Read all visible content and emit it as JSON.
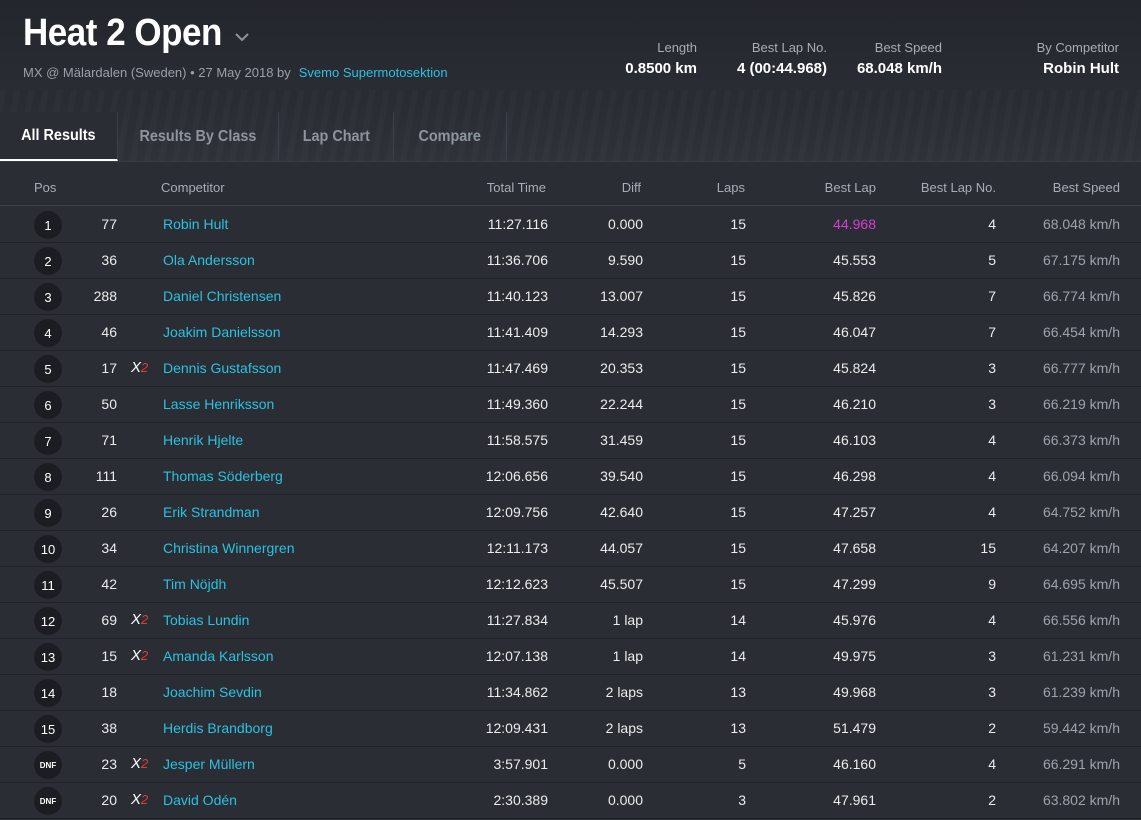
{
  "event": {
    "title": "Heat 2 Open",
    "subtitle_prefix": "MX @ Mälardalen (Sweden) • 27 May 2018 by",
    "organizer": "Svemo Supermotosektion"
  },
  "stats": [
    {
      "label": "Length",
      "value": "0.8500 km"
    },
    {
      "label": "Best Lap No.",
      "value": "4 (00:44.968)"
    },
    {
      "label": "Best Speed",
      "value": "68.048 km/h"
    },
    {
      "label": "By Competitor",
      "value": "Robin Hult"
    }
  ],
  "tabs": [
    {
      "label": "All Results",
      "active": true
    },
    {
      "label": "Results By Class",
      "active": false
    },
    {
      "label": "Lap Chart",
      "active": false
    },
    {
      "label": "Compare",
      "active": false
    }
  ],
  "columns": {
    "pos": "Pos",
    "competitor": "Competitor",
    "total_time": "Total Time",
    "diff": "Diff",
    "laps": "Laps",
    "best_lap": "Best Lap",
    "best_lap_no": "Best Lap No.",
    "best_speed": "Best Speed"
  },
  "colors": {
    "link": "#2cc1e0",
    "fastest_lap": "#d63fd0",
    "x2_mark": "#e0393e"
  },
  "rows": [
    {
      "pos": "1",
      "number": "77",
      "x2": false,
      "name": "Robin Hult",
      "total": "11:27.116",
      "diff": "0.000",
      "laps": "15",
      "best": "44.968",
      "fastest": true,
      "best_no": "4",
      "speed": "68.048 km/h"
    },
    {
      "pos": "2",
      "number": "36",
      "x2": false,
      "name": "Ola Andersson",
      "total": "11:36.706",
      "diff": "9.590",
      "laps": "15",
      "best": "45.553",
      "fastest": false,
      "best_no": "5",
      "speed": "67.175 km/h"
    },
    {
      "pos": "3",
      "number": "288",
      "x2": false,
      "name": "Daniel Christensen",
      "total": "11:40.123",
      "diff": "13.007",
      "laps": "15",
      "best": "45.826",
      "fastest": false,
      "best_no": "7",
      "speed": "66.774 km/h"
    },
    {
      "pos": "4",
      "number": "46",
      "x2": false,
      "name": "Joakim Danielsson",
      "total": "11:41.409",
      "diff": "14.293",
      "laps": "15",
      "best": "46.047",
      "fastest": false,
      "best_no": "7",
      "speed": "66.454 km/h"
    },
    {
      "pos": "5",
      "number": "17",
      "x2": true,
      "name": "Dennis Gustafsson",
      "total": "11:47.469",
      "diff": "20.353",
      "laps": "15",
      "best": "45.824",
      "fastest": false,
      "best_no": "3",
      "speed": "66.777 km/h"
    },
    {
      "pos": "6",
      "number": "50",
      "x2": false,
      "name": "Lasse Henriksson",
      "total": "11:49.360",
      "diff": "22.244",
      "laps": "15",
      "best": "46.210",
      "fastest": false,
      "best_no": "3",
      "speed": "66.219 km/h"
    },
    {
      "pos": "7",
      "number": "71",
      "x2": false,
      "name": "Henrik Hjelte",
      "total": "11:58.575",
      "diff": "31.459",
      "laps": "15",
      "best": "46.103",
      "fastest": false,
      "best_no": "4",
      "speed": "66.373 km/h"
    },
    {
      "pos": "8",
      "number": "111",
      "x2": false,
      "name": "Thomas Söderberg",
      "total": "12:06.656",
      "diff": "39.540",
      "laps": "15",
      "best": "46.298",
      "fastest": false,
      "best_no": "4",
      "speed": "66.094 km/h"
    },
    {
      "pos": "9",
      "number": "26",
      "x2": false,
      "name": "Erik Strandman",
      "total": "12:09.756",
      "diff": "42.640",
      "laps": "15",
      "best": "47.257",
      "fastest": false,
      "best_no": "4",
      "speed": "64.752 km/h"
    },
    {
      "pos": "10",
      "number": "34",
      "x2": false,
      "name": "Christina Winnergren",
      "total": "12:11.173",
      "diff": "44.057",
      "laps": "15",
      "best": "47.658",
      "fastest": false,
      "best_no": "15",
      "speed": "64.207 km/h"
    },
    {
      "pos": "11",
      "number": "42",
      "x2": false,
      "name": "Tim Nöjdh",
      "total": "12:12.623",
      "diff": "45.507",
      "laps": "15",
      "best": "47.299",
      "fastest": false,
      "best_no": "9",
      "speed": "64.695 km/h"
    },
    {
      "pos": "12",
      "number": "69",
      "x2": true,
      "name": "Tobias Lundin",
      "total": "11:27.834",
      "diff": "1 lap",
      "laps": "14",
      "best": "45.976",
      "fastest": false,
      "best_no": "4",
      "speed": "66.556 km/h"
    },
    {
      "pos": "13",
      "number": "15",
      "x2": true,
      "name": "Amanda Karlsson",
      "total": "12:07.138",
      "diff": "1 lap",
      "laps": "14",
      "best": "49.975",
      "fastest": false,
      "best_no": "3",
      "speed": "61.231 km/h"
    },
    {
      "pos": "14",
      "number": "18",
      "x2": false,
      "name": "Joachim Sevdin",
      "total": "11:34.862",
      "diff": "2 laps",
      "laps": "13",
      "best": "49.968",
      "fastest": false,
      "best_no": "3",
      "speed": "61.239 km/h"
    },
    {
      "pos": "15",
      "number": "38",
      "x2": false,
      "name": "Herdis Brandborg",
      "total": "12:09.431",
      "diff": "2 laps",
      "laps": "13",
      "best": "51.479",
      "fastest": false,
      "best_no": "2",
      "speed": "59.442 km/h"
    },
    {
      "pos": "DNF",
      "number": "23",
      "x2": true,
      "name": "Jesper Müllern",
      "total": "3:57.901",
      "diff": "0.000",
      "laps": "5",
      "best": "46.160",
      "fastest": false,
      "best_no": "4",
      "speed": "66.291 km/h"
    },
    {
      "pos": "DNF",
      "number": "20",
      "x2": true,
      "name": "David Odén",
      "total": "2:30.389",
      "diff": "0.000",
      "laps": "3",
      "best": "47.961",
      "fastest": false,
      "best_no": "2",
      "speed": "63.802 km/h"
    }
  ],
  "x2_mark": {
    "x": "X",
    "two": "2"
  }
}
